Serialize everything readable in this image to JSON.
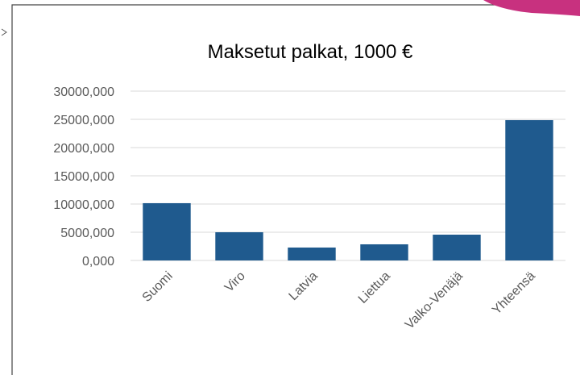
{
  "chart_data": {
    "type": "bar",
    "title": "Maksetut palkat, 1000 €",
    "categories": [
      "Suomi",
      "Viro",
      "Latvia",
      "Liettua",
      "Valko-Venäjä",
      "Yhteensä"
    ],
    "values": [
      10150,
      5000,
      2290,
      2860,
      4570,
      24860
    ],
    "color": "#1f5a8e",
    "ylim": [
      0,
      30000
    ],
    "yticks": [
      {
        "value": 0,
        "label": "0,000"
      },
      {
        "value": 5000,
        "label": "5000,000"
      },
      {
        "value": 10000,
        "label": "10000,000"
      },
      {
        "value": 15000,
        "label": "15000,000"
      },
      {
        "value": 20000,
        "label": "20000,000"
      },
      {
        "value": 25000,
        "label": "25000,000"
      },
      {
        "value": 30000,
        "label": "30000,000"
      }
    ],
    "grid": true
  }
}
